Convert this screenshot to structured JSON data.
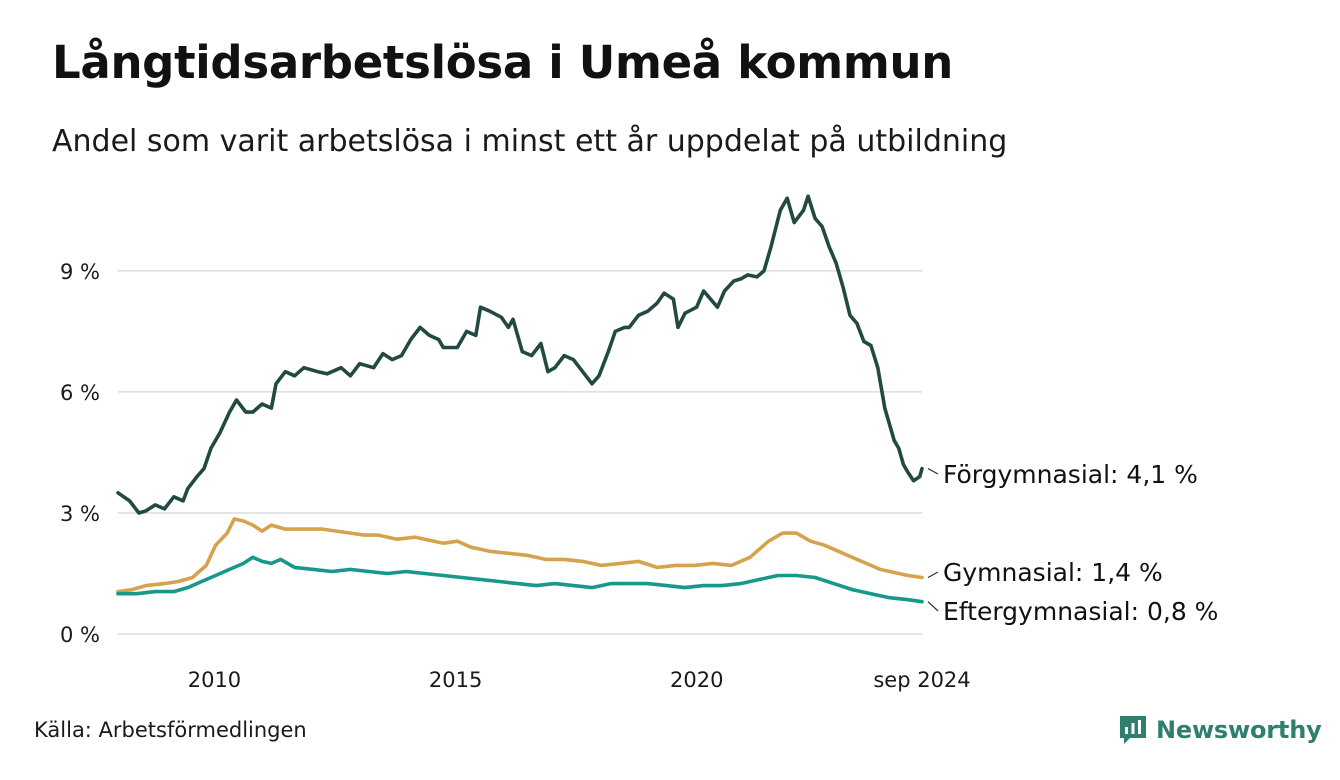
{
  "title": "Långtidsarbetslösa i Umeå kommun",
  "subtitle": "Andel som varit arbetslösa i minst ett år uppdelat på utbildning",
  "source": "Källa: Arbetsförmedlingen",
  "brand": "Newsworthy",
  "colors": {
    "forgymnasial": "#234a42",
    "gymnasial": "#d5a34d",
    "eftergymnasial": "#16998a",
    "grid": "#dcdcdc",
    "brand": "#2f7f6f"
  },
  "chart_data": {
    "type": "line",
    "ylim": [
      0,
      11.5
    ],
    "xlim": [
      2008.0,
      2024.67
    ],
    "y_ticks": [
      {
        "value": 0,
        "label": "0 %"
      },
      {
        "value": 3,
        "label": "3 %"
      },
      {
        "value": 6,
        "label": "6 %"
      },
      {
        "value": 9,
        "label": "9 %"
      }
    ],
    "x_ticks": [
      {
        "value": 2010,
        "label": "2010"
      },
      {
        "value": 2015,
        "label": "2015"
      },
      {
        "value": 2020,
        "label": "2020"
      },
      {
        "value": 2024.67,
        "label": "sep 2024"
      }
    ],
    "grid": true,
    "series": [
      {
        "key": "forgymnasial",
        "name": "Förgymnasial",
        "end_label": "Förgymnasial: 4,1 %",
        "points": [
          [
            2008.0,
            3.5
          ],
          [
            2008.25,
            3.3
          ],
          [
            2008.45,
            3.0
          ],
          [
            2008.6,
            3.05
          ],
          [
            2008.8,
            3.2
          ],
          [
            2009.0,
            3.1
          ],
          [
            2009.2,
            3.4
          ],
          [
            2009.4,
            3.3
          ],
          [
            2009.5,
            3.6
          ],
          [
            2009.7,
            3.9
          ],
          [
            2009.85,
            4.1
          ],
          [
            2010.0,
            4.6
          ],
          [
            2010.2,
            5.0
          ],
          [
            2010.4,
            5.5
          ],
          [
            2010.55,
            5.8
          ],
          [
            2010.75,
            5.5
          ],
          [
            2010.9,
            5.5
          ],
          [
            2011.1,
            5.7
          ],
          [
            2011.3,
            5.6
          ],
          [
            2011.4,
            6.2
          ],
          [
            2011.6,
            6.5
          ],
          [
            2011.8,
            6.4
          ],
          [
            2012.0,
            6.6
          ],
          [
            2012.3,
            6.5
          ],
          [
            2012.5,
            6.45
          ],
          [
            2012.8,
            6.6
          ],
          [
            2013.0,
            6.4
          ],
          [
            2013.2,
            6.7
          ],
          [
            2013.5,
            6.6
          ],
          [
            2013.7,
            6.95
          ],
          [
            2013.9,
            6.8
          ],
          [
            2014.1,
            6.9
          ],
          [
            2014.3,
            7.3
          ],
          [
            2014.5,
            7.6
          ],
          [
            2014.7,
            7.4
          ],
          [
            2014.9,
            7.3
          ],
          [
            2015.0,
            7.1
          ],
          [
            2015.3,
            7.1
          ],
          [
            2015.5,
            7.5
          ],
          [
            2015.7,
            7.4
          ],
          [
            2015.8,
            8.1
          ],
          [
            2016.0,
            8.0
          ],
          [
            2016.25,
            7.85
          ],
          [
            2016.4,
            7.6
          ],
          [
            2016.5,
            7.8
          ],
          [
            2016.7,
            7.0
          ],
          [
            2016.9,
            6.9
          ],
          [
            2017.1,
            7.2
          ],
          [
            2017.25,
            6.5
          ],
          [
            2017.4,
            6.6
          ],
          [
            2017.6,
            6.9
          ],
          [
            2017.8,
            6.8
          ],
          [
            2018.0,
            6.5
          ],
          [
            2018.2,
            6.2
          ],
          [
            2018.35,
            6.4
          ],
          [
            2018.55,
            7.0
          ],
          [
            2018.7,
            7.5
          ],
          [
            2018.9,
            7.6
          ],
          [
            2019.0,
            7.6
          ],
          [
            2019.2,
            7.9
          ],
          [
            2019.4,
            8.0
          ],
          [
            2019.6,
            8.2
          ],
          [
            2019.75,
            8.45
          ],
          [
            2019.95,
            8.3
          ],
          [
            2020.05,
            7.6
          ],
          [
            2020.2,
            7.95
          ],
          [
            2020.45,
            8.1
          ],
          [
            2020.6,
            8.5
          ],
          [
            2020.75,
            8.3
          ],
          [
            2020.9,
            8.1
          ],
          [
            2021.05,
            8.5
          ],
          [
            2021.25,
            8.75
          ],
          [
            2021.4,
            8.8
          ],
          [
            2021.55,
            8.9
          ],
          [
            2021.75,
            8.85
          ],
          [
            2021.9,
            9.0
          ],
          [
            2022.05,
            9.6
          ],
          [
            2022.25,
            10.5
          ],
          [
            2022.4,
            10.8
          ],
          [
            2022.55,
            10.2
          ],
          [
            2022.75,
            10.5
          ],
          [
            2022.85,
            10.85
          ],
          [
            2023.0,
            10.3
          ],
          [
            2023.15,
            10.1
          ],
          [
            2023.3,
            9.6
          ],
          [
            2023.45,
            9.2
          ],
          [
            2023.6,
            8.6
          ],
          [
            2023.75,
            7.9
          ],
          [
            2023.9,
            7.7
          ],
          [
            2024.05,
            7.25
          ],
          [
            2024.2,
            7.15
          ],
          [
            2024.35,
            6.6
          ],
          [
            2024.5,
            5.6
          ],
          [
            2024.6,
            5.2
          ],
          [
            2024.7,
            4.8
          ],
          [
            2024.8,
            4.6
          ],
          [
            2024.9,
            4.2
          ],
          [
            2025.0,
            4.0
          ],
          [
            2025.12,
            3.8
          ],
          [
            2025.25,
            3.9
          ],
          [
            2025.3,
            4.1
          ]
        ]
      },
      {
        "key": "gymnasial",
        "name": "Gymnasial",
        "end_label": "Gymnasial: 1,4 %",
        "points": [
          [
            2008.0,
            1.05
          ],
          [
            2008.3,
            1.1
          ],
          [
            2008.6,
            1.2
          ],
          [
            2009.0,
            1.25
          ],
          [
            2009.3,
            1.3
          ],
          [
            2009.6,
            1.4
          ],
          [
            2009.9,
            1.7
          ],
          [
            2010.1,
            2.2
          ],
          [
            2010.35,
            2.5
          ],
          [
            2010.5,
            2.85
          ],
          [
            2010.7,
            2.8
          ],
          [
            2010.9,
            2.7
          ],
          [
            2011.1,
            2.55
          ],
          [
            2011.3,
            2.7
          ],
          [
            2011.6,
            2.6
          ],
          [
            2012.0,
            2.6
          ],
          [
            2012.4,
            2.6
          ],
          [
            2012.7,
            2.55
          ],
          [
            2013.0,
            2.5
          ],
          [
            2013.3,
            2.45
          ],
          [
            2013.6,
            2.45
          ],
          [
            2014.0,
            2.35
          ],
          [
            2014.4,
            2.4
          ],
          [
            2014.8,
            2.3
          ],
          [
            2015.0,
            2.25
          ],
          [
            2015.3,
            2.3
          ],
          [
            2015.6,
            2.15
          ],
          [
            2016.0,
            2.05
          ],
          [
            2016.4,
            2.0
          ],
          [
            2016.8,
            1.95
          ],
          [
            2017.2,
            1.85
          ],
          [
            2017.6,
            1.85
          ],
          [
            2018.0,
            1.8
          ],
          [
            2018.4,
            1.7
          ],
          [
            2018.8,
            1.75
          ],
          [
            2019.2,
            1.8
          ],
          [
            2019.6,
            1.65
          ],
          [
            2020.0,
            1.7
          ],
          [
            2020.4,
            1.7
          ],
          [
            2020.8,
            1.75
          ],
          [
            2021.2,
            1.7
          ],
          [
            2021.6,
            1.9
          ],
          [
            2022.0,
            2.3
          ],
          [
            2022.3,
            2.5
          ],
          [
            2022.6,
            2.5
          ],
          [
            2022.9,
            2.3
          ],
          [
            2023.2,
            2.2
          ],
          [
            2023.6,
            2.0
          ],
          [
            2024.0,
            1.8
          ],
          [
            2024.4,
            1.6
          ],
          [
            2024.8,
            1.5
          ],
          [
            2025.0,
            1.45
          ],
          [
            2025.3,
            1.4
          ]
        ]
      },
      {
        "key": "eftergymnasial",
        "name": "Eftergymnasial",
        "end_label": "Eftergymnasial: 0,8 %",
        "points": [
          [
            2008.0,
            1.0
          ],
          [
            2008.4,
            1.0
          ],
          [
            2008.8,
            1.05
          ],
          [
            2009.2,
            1.05
          ],
          [
            2009.5,
            1.15
          ],
          [
            2009.8,
            1.3
          ],
          [
            2010.1,
            1.45
          ],
          [
            2010.4,
            1.6
          ],
          [
            2010.7,
            1.75
          ],
          [
            2010.9,
            1.9
          ],
          [
            2011.1,
            1.8
          ],
          [
            2011.3,
            1.75
          ],
          [
            2011.5,
            1.85
          ],
          [
            2011.8,
            1.65
          ],
          [
            2012.2,
            1.6
          ],
          [
            2012.6,
            1.55
          ],
          [
            2013.0,
            1.6
          ],
          [
            2013.4,
            1.55
          ],
          [
            2013.8,
            1.5
          ],
          [
            2014.2,
            1.55
          ],
          [
            2014.6,
            1.5
          ],
          [
            2015.0,
            1.45
          ],
          [
            2015.4,
            1.4
          ],
          [
            2015.8,
            1.35
          ],
          [
            2016.2,
            1.3
          ],
          [
            2016.6,
            1.25
          ],
          [
            2017.0,
            1.2
          ],
          [
            2017.4,
            1.25
          ],
          [
            2017.8,
            1.2
          ],
          [
            2018.2,
            1.15
          ],
          [
            2018.6,
            1.25
          ],
          [
            2019.0,
            1.25
          ],
          [
            2019.4,
            1.25
          ],
          [
            2019.8,
            1.2
          ],
          [
            2020.2,
            1.15
          ],
          [
            2020.6,
            1.2
          ],
          [
            2021.0,
            1.2
          ],
          [
            2021.4,
            1.25
          ],
          [
            2021.8,
            1.35
          ],
          [
            2022.2,
            1.45
          ],
          [
            2022.6,
            1.45
          ],
          [
            2023.0,
            1.4
          ],
          [
            2023.4,
            1.25
          ],
          [
            2023.8,
            1.1
          ],
          [
            2024.2,
            1.0
          ],
          [
            2024.6,
            0.9
          ],
          [
            2025.0,
            0.85
          ],
          [
            2025.3,
            0.8
          ]
        ]
      }
    ]
  }
}
